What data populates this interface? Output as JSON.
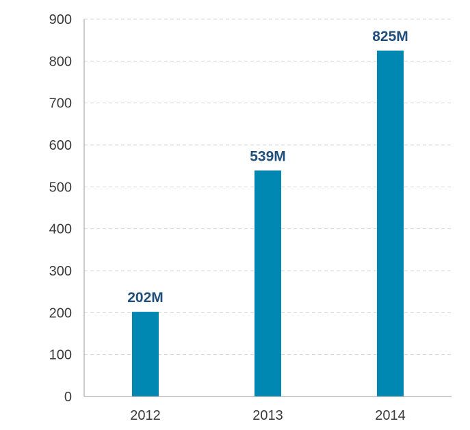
{
  "chart_data": {
    "type": "bar",
    "categories": [
      "2012",
      "2013",
      "2014"
    ],
    "values": [
      202,
      539,
      825
    ],
    "data_labels": [
      "202M",
      "539M",
      "825M"
    ],
    "ylim": [
      0,
      900
    ],
    "yticks": [
      "0",
      "100",
      "200",
      "300",
      "400",
      "500",
      "600",
      "700",
      "800",
      "900"
    ],
    "grid": true,
    "legend": "none",
    "bar_color": "#0088b3",
    "label_color": "#1f4f7a"
  }
}
